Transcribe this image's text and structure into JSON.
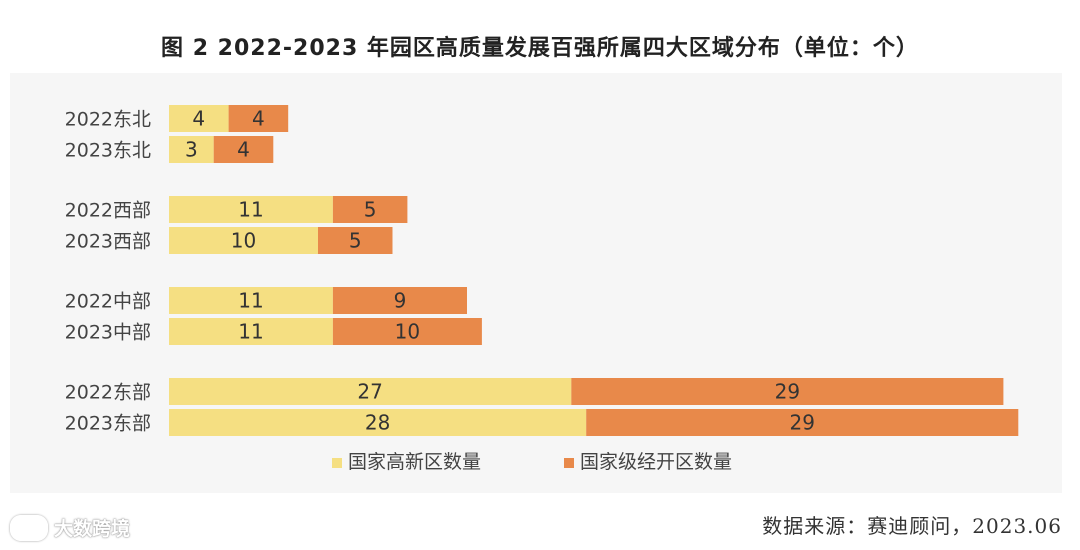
{
  "chart_data": {
    "type": "bar",
    "orientation": "horizontal",
    "stacked": true,
    "title": "图  2 2022-2023 年园区高质量发展百强所属四大区域分布（单位：个）",
    "categories": [
      "2022东北",
      "2023东北",
      "2022西部",
      "2023西部",
      "2022中部",
      "2023中部",
      "2022东部",
      "2023东部"
    ],
    "groups": [
      [
        0,
        1
      ],
      [
        2,
        3
      ],
      [
        4,
        5
      ],
      [
        6,
        7
      ]
    ],
    "series": [
      {
        "name": "国家高新区数量",
        "color": "#f5df82",
        "values": [
          4,
          3,
          11,
          10,
          11,
          11,
          27,
          28
        ]
      },
      {
        "name": "国家级经开区数量",
        "color": "#e8894a",
        "values": [
          4,
          4,
          5,
          5,
          9,
          10,
          29,
          29
        ]
      }
    ],
    "xlim": [
      0,
      57
    ],
    "legend_position": "bottom"
  },
  "source": "数据来源：赛迪顾问，2023.06",
  "watermark": "大数跨境"
}
